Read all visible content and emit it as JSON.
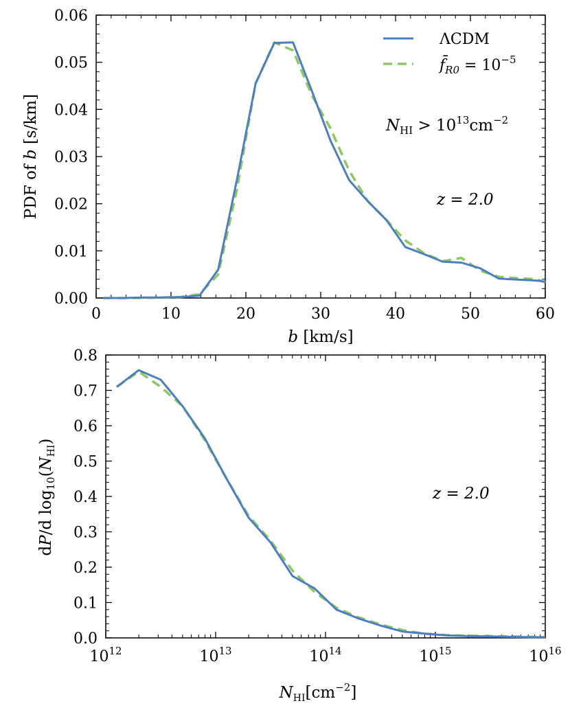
{
  "colors": {
    "lcdm": "#4a7fc1",
    "fr": "#8fc862",
    "axis": "#000000"
  },
  "chart_data": [
    {
      "type": "line",
      "title": "",
      "xlabel_var": "b",
      "xlabel_unit": "[km/s]",
      "ylabel_prefix": "PDF of",
      "ylabel_var": "b",
      "ylabel_unit": "[s/km]",
      "xlim": [
        0,
        60
      ],
      "ylim": [
        0,
        0.06
      ],
      "xticks": [
        0,
        10,
        20,
        30,
        40,
        50,
        60
      ],
      "xtick_labels": [
        "0",
        "10",
        "20",
        "30",
        "40",
        "50",
        "60"
      ],
      "yticks": [
        0,
        0.01,
        0.02,
        0.03,
        0.04,
        0.05,
        0.06
      ],
      "ytick_labels": [
        "0.00",
        "0.01",
        "0.02",
        "0.03",
        "0.04",
        "0.05",
        "0.06"
      ],
      "annotations": {
        "nhi_sym": "N",
        "nhi_sub": "HI",
        "nhi_rel": " > 10",
        "nhi_exp": "13",
        "nhi_unit": "cm",
        "nhi_unit_exp": "−2",
        "redshift": "z = 2.0"
      },
      "legend": {
        "placement": "top-right",
        "entries": [
          "ΛCDM",
          "f̄R0 = 10−5"
        ],
        "fr_sym": "f̄",
        "fr_sub": "R0",
        "fr_rel": " = 10",
        "fr_exp": "−5"
      },
      "series": [
        {
          "name": "ΛCDM",
          "style": "solid",
          "x": [
            1,
            3.7,
            6.2,
            8.7,
            11.3,
            13.8,
            16.3,
            18.8,
            21.3,
            23.8,
            26.3,
            28.8,
            31.3,
            33.8,
            36.3,
            38.8,
            41.3,
            43.8,
            46.3,
            48.8,
            51.3,
            53.8,
            56.3,
            58.8,
            60
          ],
          "y": [
            0,
            0,
            0.0001,
            0.0001,
            0.0002,
            0.0005,
            0.006,
            0.025,
            0.0455,
            0.0541,
            0.0542,
            0.044,
            0.0334,
            0.025,
            0.0205,
            0.0165,
            0.0108,
            0.0093,
            0.0077,
            0.0075,
            0.0063,
            0.0041,
            0.0039,
            0.0037,
            0.0035
          ]
        },
        {
          "name": "f̄R0 = 10−5",
          "style": "dashed",
          "x": [
            1,
            3.7,
            6.2,
            8.7,
            11.3,
            13.8,
            16.3,
            18.8,
            21.3,
            23.8,
            26.3,
            28.8,
            31.3,
            33.8,
            36.3,
            38.8,
            41.3,
            43.8,
            46.3,
            48.8,
            51.3,
            53.8,
            56.3,
            58.8,
            60
          ],
          "y": [
            0,
            0,
            0,
            0.0001,
            0.0002,
            0.0008,
            0.005,
            0.023,
            0.0455,
            0.0542,
            0.0525,
            0.043,
            0.036,
            0.027,
            0.0205,
            0.0165,
            0.0122,
            0.0095,
            0.0078,
            0.0085,
            0.0058,
            0.0045,
            0.0042,
            0.004,
            0.0033
          ]
        }
      ]
    },
    {
      "type": "line",
      "title": "",
      "xscale": "log",
      "xlabel_var": "N",
      "xlabel_sub": "HI",
      "xlabel_unit": "[cm",
      "xlabel_unit_exp": "−2",
      "xlabel_close": "]",
      "ylabel_pre": "d",
      "ylabel_var": "P",
      "ylabel_mid": "/d log",
      "ylabel_sub": "10",
      "ylabel_open": "(",
      "ylabel_n": "N",
      "ylabel_nsub": "HI",
      "ylabel_close": ")",
      "xlim_log10": [
        12,
        16
      ],
      "ylim": [
        0,
        0.8
      ],
      "xticks_log10": [
        12,
        13,
        14,
        15,
        16
      ],
      "xtick_base": "10",
      "xtick_exps": [
        "12",
        "13",
        "14",
        "15",
        "16"
      ],
      "yticks": [
        0,
        0.1,
        0.2,
        0.3,
        0.4,
        0.5,
        0.6,
        0.7,
        0.8
      ],
      "ytick_labels": [
        "0.0",
        "0.1",
        "0.2",
        "0.3",
        "0.4",
        "0.5",
        "0.6",
        "0.7",
        "0.8"
      ],
      "annotations": {
        "redshift": "z = 2.0"
      },
      "series": [
        {
          "name": "ΛCDM",
          "style": "solid",
          "x_log10": [
            12.1,
            12.3,
            12.5,
            12.7,
            12.9,
            13.1,
            13.3,
            13.5,
            13.7,
            13.9,
            14.1,
            14.3,
            14.5,
            14.7,
            14.9,
            15.1,
            15.3,
            15.5,
            15.7,
            15.9,
            16.0
          ],
          "y": [
            0.71,
            0.757,
            0.73,
            0.655,
            0.565,
            0.45,
            0.34,
            0.27,
            0.175,
            0.14,
            0.08,
            0.055,
            0.035,
            0.018,
            0.012,
            0.007,
            0.005,
            0.004,
            0.003,
            0.002,
            0.002
          ]
        },
        {
          "name": "f̄R0 = 10−5",
          "style": "dashed",
          "x_log10": [
            12.1,
            12.3,
            12.5,
            12.7,
            12.9,
            13.1,
            13.3,
            13.5,
            13.7,
            13.9,
            14.1,
            14.3,
            14.5,
            14.7,
            14.9,
            15.1,
            15.3,
            15.5,
            15.7,
            15.9,
            16.0
          ],
          "y": [
            0.71,
            0.753,
            0.71,
            0.655,
            0.56,
            0.45,
            0.345,
            0.275,
            0.19,
            0.13,
            0.085,
            0.058,
            0.038,
            0.022,
            0.012,
            0.008,
            0.006,
            0.005,
            0.004,
            0.003,
            0.002
          ]
        }
      ]
    }
  ]
}
